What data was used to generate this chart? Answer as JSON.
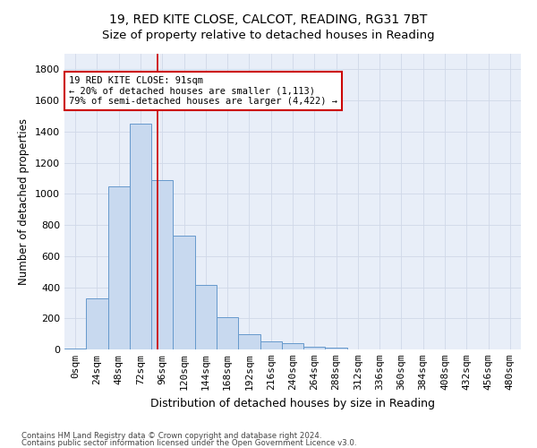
{
  "title1": "19, RED KITE CLOSE, CALCOT, READING, RG31 7BT",
  "title2": "Size of property relative to detached houses in Reading",
  "xlabel": "Distribution of detached houses by size in Reading",
  "ylabel": "Number of detached properties",
  "bar_color": "#c8d9ef",
  "bar_edge_color": "#6699cc",
  "categories": [
    "0sqm",
    "24sqm",
    "48sqm",
    "72sqm",
    "96sqm",
    "120sqm",
    "144sqm",
    "168sqm",
    "192sqm",
    "216sqm",
    "240sqm",
    "264sqm",
    "288sqm",
    "312sqm",
    "336sqm",
    "360sqm",
    "384sqm",
    "408sqm",
    "432sqm",
    "456sqm",
    "480sqm"
  ],
  "values": [
    5,
    330,
    1050,
    1450,
    1090,
    730,
    415,
    210,
    100,
    50,
    40,
    20,
    10,
    2,
    1,
    1,
    0,
    0,
    0,
    0,
    0
  ],
  "ylim": [
    0,
    1900
  ],
  "yticks": [
    0,
    200,
    400,
    600,
    800,
    1000,
    1200,
    1400,
    1600,
    1800
  ],
  "vline_color": "#cc0000",
  "vline_pos": 3.79,
  "annotation_text": "19 RED KITE CLOSE: 91sqm\n← 20% of detached houses are smaller (1,113)\n79% of semi-detached houses are larger (4,422) →",
  "annotation_box_facecolor": "#ffffff",
  "annotation_box_edgecolor": "#cc0000",
  "footnote1": "Contains HM Land Registry data © Crown copyright and database right 2024.",
  "footnote2": "Contains public sector information licensed under the Open Government Licence v3.0.",
  "grid_color": "#d0d8e8",
  "background_color": "#e8eef8",
  "title1_fontsize": 10,
  "title2_fontsize": 9.5,
  "ylabel_fontsize": 8.5,
  "xlabel_fontsize": 9,
  "tick_fontsize": 8,
  "annot_fontsize": 7.5,
  "footnote_fontsize": 6.2
}
